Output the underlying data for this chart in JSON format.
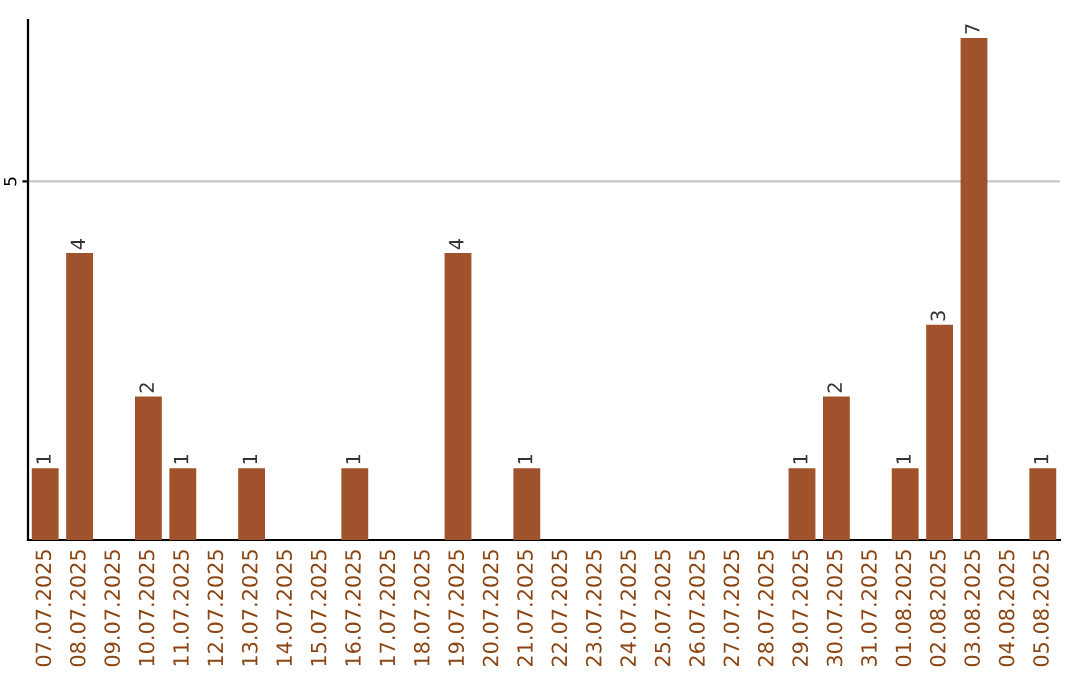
{
  "chart_data": {
    "type": "bar",
    "categories": [
      "07.07.2025",
      "08.07.2025",
      "09.07.2025",
      "10.07.2025",
      "11.07.2025",
      "12.07.2025",
      "13.07.2025",
      "14.07.2025",
      "15.07.2025",
      "16.07.2025",
      "17.07.2025",
      "18.07.2025",
      "19.07.2025",
      "20.07.2025",
      "21.07.2025",
      "22.07.2025",
      "23.07.2025",
      "24.07.2025",
      "25.07.2025",
      "26.07.2025",
      "27.07.2025",
      "28.07.2025",
      "29.07.2025",
      "30.07.2025",
      "31.07.2025",
      "01.08.2025",
      "02.08.2025",
      "03.08.2025",
      "04.08.2025",
      "05.08.2025"
    ],
    "values": [
      1,
      4,
      0,
      2,
      1,
      0,
      1,
      0,
      0,
      1,
      0,
      0,
      4,
      0,
      1,
      0,
      0,
      0,
      0,
      0,
      0,
      0,
      1,
      2,
      0,
      1,
      3,
      7,
      0,
      1
    ],
    "value_labels": [
      "1",
      "4",
      null,
      "2",
      "1",
      null,
      "1",
      null,
      null,
      "1",
      null,
      null,
      "4",
      null,
      "1",
      null,
      null,
      null,
      null,
      null,
      null,
      null,
      "1",
      "2",
      null,
      "1",
      "3",
      "7",
      null,
      "1"
    ],
    "color": "#a0522d",
    "ylim": [
      0,
      7.25
    ],
    "yticks": [
      5
    ],
    "grid": "y"
  }
}
